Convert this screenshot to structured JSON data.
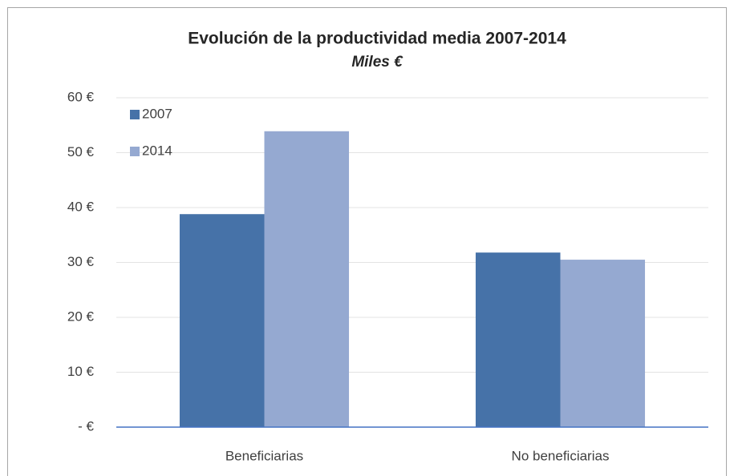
{
  "chart_data": {
    "type": "bar",
    "title": "Evolución de la productividad media 2007-2014",
    "subtitle": "Miles €",
    "categories": [
      "Beneficiarias",
      "No beneficiarias"
    ],
    "series": [
      {
        "name": "2007",
        "color": "#4672a8",
        "values": [
          38.8,
          31.8
        ]
      },
      {
        "name": "2014",
        "color": "#95a9d1",
        "values": [
          53.9,
          30.5
        ]
      }
    ],
    "ylim": [
      0,
      60
    ],
    "yticks": [
      {
        "value": 0,
        "label": "- €"
      },
      {
        "value": 10,
        "label": "10 €"
      },
      {
        "value": 20,
        "label": "20 €"
      },
      {
        "value": 30,
        "label": "30 €"
      },
      {
        "value": 40,
        "label": "40 €"
      },
      {
        "value": 50,
        "label": "50 €"
      },
      {
        "value": 60,
        "label": "60 €"
      }
    ],
    "grid": true,
    "legend": "top-left"
  }
}
